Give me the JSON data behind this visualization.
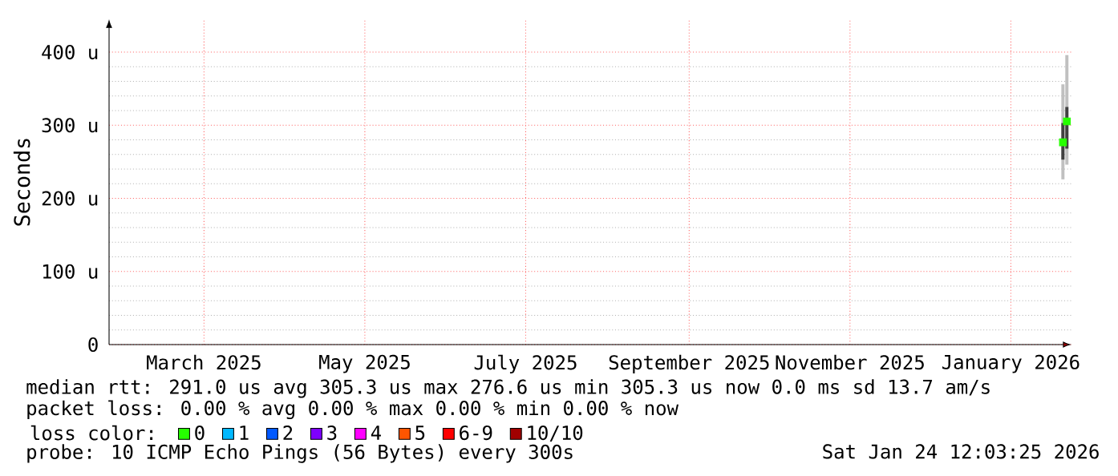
{
  "chart_data": {
    "type": "bar",
    "ylabel": "Seconds",
    "legend_title": "loss color:",
    "legend": "bottom",
    "grid": true,
    "marker": "square",
    "xlim": [
      "2025-01-24",
      "2026-01-24"
    ],
    "xticks": [
      {
        "value": "2025-03-01",
        "label": "March 2025"
      },
      {
        "value": "2025-05-01",
        "label": "May 2025"
      },
      {
        "value": "2025-07-01",
        "label": "July 2025"
      },
      {
        "value": "2025-09-01",
        "label": "September 2025"
      },
      {
        "value": "2025-11-01",
        "label": "November 2025"
      },
      {
        "value": "2026-01-01",
        "label": "January 2026"
      }
    ],
    "ylim": [
      0,
      445
    ],
    "yticks": [
      0,
      {
        "value": 100,
        "label": "100 u"
      },
      {
        "value": 200,
        "label": "200 u"
      },
      {
        "value": 300,
        "label": "300 u"
      },
      {
        "value": 400,
        "label": "400 u"
      }
    ],
    "x": [
      "2026-01-20T18:00",
      "2026-01-22T06:00"
    ],
    "series": [
      {
        "color": "#c0c0c0",
        "base": [
          226,
          246
        ],
        "values": [
          130,
          150
        ]
      },
      {
        "color": "#404040",
        "base": [
          253,
          268
        ],
        "values": [
          50,
          57
        ]
      },
      {
        "type": "scatter",
        "name": "0",
        "color": "#26ff00",
        "values": [
          276.6,
          305.3
        ]
      },
      {
        "type": "scatter",
        "name": "1",
        "color": "#00b8ff",
        "values": [
          null,
          null
        ]
      },
      {
        "type": "scatter",
        "name": "2",
        "color": "#0059ff",
        "values": [
          null,
          null
        ]
      },
      {
        "type": "scatter",
        "name": "3",
        "color": "#7e00ff",
        "values": [
          null,
          null
        ]
      },
      {
        "type": "scatter",
        "name": "4",
        "color": "#ff00ff",
        "values": [
          null,
          null
        ]
      },
      {
        "type": "scatter",
        "name": "5",
        "color": "#ff5500",
        "values": [
          null,
          null
        ]
      },
      {
        "type": "scatter",
        "name": "6-9",
        "color": "#ff0000",
        "values": [
          null,
          null
        ]
      },
      {
        "type": "scatter",
        "name": "10/10",
        "color": "#a00000",
        "values": [
          null,
          null
        ]
      }
    ],
    "annotations": [
      "median rtt:  291.0 us avg  305.3 us max  276.6 us min  305.3 us now  0.0 ms sd  13.7   am/s",
      "packet loss: 0.00 % avg  0.00 % max  0.00 % min  0.00 % now",
      "probe:       10 ICMP Echo Pings (56 Bytes) every 300s",
      "Sat Jan 24 12:03:25 2026"
    ]
  }
}
